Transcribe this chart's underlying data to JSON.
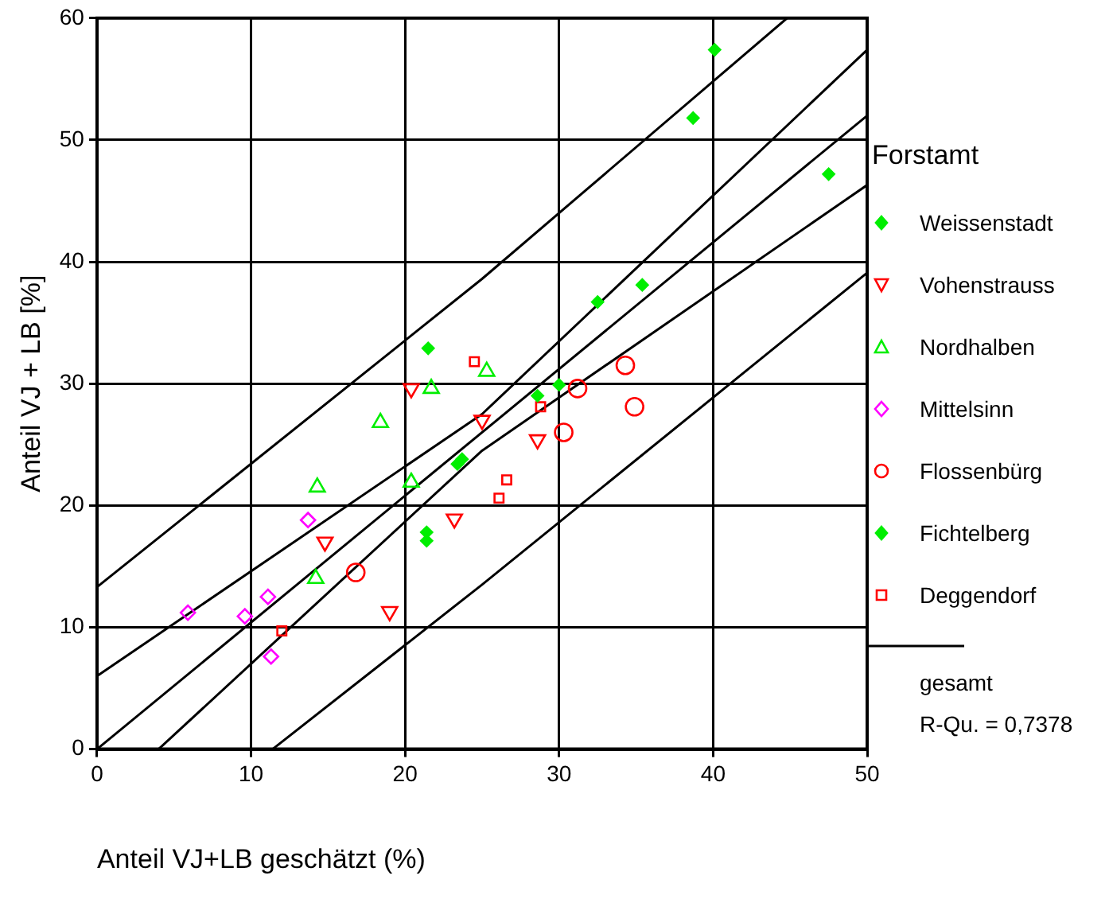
{
  "chart_data": {
    "type": "scatter",
    "xlabel": "Anteil VJ+LB geschätzt (%)",
    "ylabel": "Anteil VJ + LB [%]",
    "legend_title": "Forstamt",
    "legend": "right",
    "grid": true,
    "xlim": [
      0,
      50
    ],
    "xticks": [
      0,
      10,
      20,
      30,
      40,
      50
    ],
    "ylim": [
      0,
      60
    ],
    "yticks": [
      0,
      10,
      20,
      30,
      40,
      50,
      60
    ],
    "annotations": [
      "R-Qu. = 0,7378"
    ],
    "series": [
      {
        "name": "Weissenstadt",
        "color": "#00ee00",
        "marker": "diamond",
        "x": [
          40.1,
          38.7,
          47.5,
          35.4,
          32.5,
          21.5
        ],
        "values": [
          57.4,
          51.8,
          47.2,
          38.1,
          36.7,
          32.9
        ]
      },
      {
        "name": "Vohenstrauss",
        "color": "#ff0000",
        "marker": "triangle-down",
        "x": [
          20.4,
          25.0,
          28.6,
          23.2,
          14.8,
          19.0
        ],
        "values": [
          29.6,
          27.0,
          25.4,
          18.9,
          17.0,
          11.3
        ]
      },
      {
        "name": "Nordhalben",
        "color": "#00ee00",
        "marker": "triangle",
        "x": [
          18.4,
          14.3,
          14.2,
          20.4,
          21.7,
          25.3
        ],
        "values": [
          26.8,
          21.5,
          14.0,
          21.9,
          29.6,
          31.0
        ]
      },
      {
        "name": "Mittelsinn",
        "color": "#ff00ff",
        "marker": "diamond-open",
        "x": [
          13.7,
          5.9,
          9.6,
          11.1,
          11.3
        ],
        "values": [
          18.8,
          11.2,
          10.9,
          12.5,
          7.6
        ]
      },
      {
        "name": "Flossenbürg",
        "color": "#ff0000",
        "marker": "circle",
        "x": [
          16.8,
          34.3,
          31.2,
          34.9,
          30.3
        ],
        "values": [
          14.5,
          31.5,
          29.6,
          28.1,
          26.0
        ]
      },
      {
        "name": "Fichtelberg",
        "color": "#00ee00",
        "marker": "diamond",
        "x": [
          30.0,
          28.6,
          23.7,
          23.4,
          21.4,
          21.4
        ],
        "values": [
          29.9,
          29.0,
          23.8,
          23.4,
          17.8,
          17.1
        ]
      },
      {
        "name": "Deggendorf",
        "color": "#ff0000",
        "marker": "square",
        "x": [
          12.0,
          24.5,
          28.8,
          26.6,
          26.1
        ],
        "values": [
          9.7,
          31.8,
          28.1,
          22.1,
          20.6
        ]
      },
      {
        "name": "gesamt",
        "type": "line",
        "color": "#000000",
        "marker": "none",
        "x": [
          0,
          50
        ],
        "values": [
          0,
          52.0
        ]
      },
      {
        "type": "line",
        "color": "#000000",
        "marker": "none",
        "x": [
          0,
          25,
          50
        ],
        "values": [
          6.0,
          27.5,
          57.4
        ]
      },
      {
        "type": "line",
        "color": "#000000",
        "marker": "none",
        "x": [
          4,
          25,
          50
        ],
        "values": [
          0,
          24.5,
          46.3
        ]
      },
      {
        "type": "line",
        "color": "#000000",
        "marker": "none",
        "x": [
          0,
          25,
          44.8
        ],
        "values": [
          13.3,
          38.6,
          60
        ]
      },
      {
        "type": "line",
        "color": "#000000",
        "marker": "none",
        "x": [
          11.4,
          25,
          50
        ],
        "values": [
          0,
          13.5,
          39.1
        ]
      }
    ]
  }
}
